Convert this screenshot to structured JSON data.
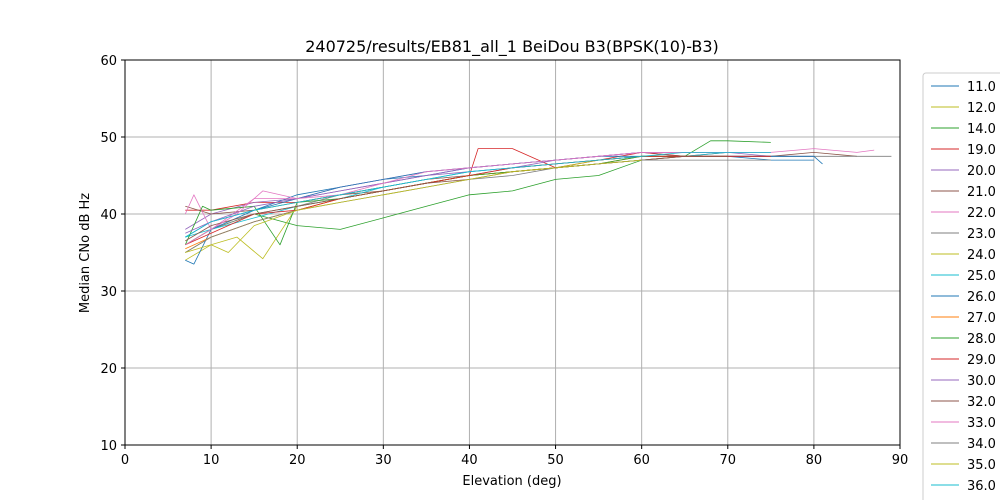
{
  "chart_data": {
    "type": "line",
    "title": "240725/results/EB81_all_1 BeiDou B3(BPSK(10)-B3)",
    "xlabel": "Elevation (deg)",
    "ylabel": "Median CNo dB Hz",
    "xlim": [
      0,
      90
    ],
    "ylim": [
      10,
      60
    ],
    "xticks": [
      0,
      10,
      20,
      30,
      40,
      50,
      60,
      70,
      80,
      90
    ],
    "yticks": [
      10,
      20,
      30,
      40,
      50,
      60
    ],
    "grid": true,
    "legend_position": "right, outside plot",
    "series": [
      {
        "name": "11.0",
        "color": "#1f77b4",
        "x": [
          7,
          10,
          15,
          20,
          25,
          30,
          35,
          40,
          45,
          50,
          55,
          60,
          65,
          70,
          75,
          80
        ],
        "values": [
          37,
          39,
          40.5,
          42.5,
          43.5,
          44.5,
          45,
          46,
          46.5,
          47,
          47.5,
          48,
          47.5,
          47.5,
          47,
          47
        ]
      },
      {
        "name": "12.0",
        "color": "#bcbd22",
        "x": [
          7,
          10,
          15,
          20,
          25,
          30,
          35,
          40,
          45,
          50,
          55,
          60
        ],
        "values": [
          35,
          37,
          39,
          40.5,
          42,
          43,
          44,
          45,
          45.5,
          46,
          46.5,
          47
        ]
      },
      {
        "name": "14.0",
        "color": "#2ca02c",
        "x": [
          7,
          10,
          15,
          20,
          25,
          30,
          35,
          40,
          45,
          50,
          55,
          60,
          65,
          68,
          70,
          75
        ],
        "values": [
          36,
          38,
          40,
          38.5,
          38,
          39.5,
          41,
          42.5,
          43,
          44.5,
          45,
          47,
          47.5,
          49.5,
          49.5,
          49.3
        ]
      },
      {
        "name": "19.0",
        "color": "#d62728",
        "x": [
          7,
          10,
          15,
          20,
          25,
          30,
          35,
          40,
          41,
          45,
          50,
          55,
          60,
          65,
          70
        ],
        "values": [
          40.5,
          40.5,
          41.5,
          41.5,
          42.5,
          43.5,
          44.5,
          45,
          48.5,
          48.5,
          46,
          47,
          48,
          47.5,
          48
        ]
      },
      {
        "name": "20.0",
        "color": "#9467bd",
        "x": [
          7,
          10,
          15,
          20,
          25,
          30,
          35,
          40,
          45,
          50,
          55,
          60,
          65,
          70,
          75,
          80
        ],
        "values": [
          38,
          40,
          41.5,
          42,
          43,
          44,
          45,
          46,
          46.5,
          47,
          47.5,
          48,
          48,
          48,
          47.5,
          47.5
        ]
      },
      {
        "name": "21.0",
        "color": "#8c564b",
        "x": [
          7,
          10,
          15,
          20,
          25,
          30,
          35,
          40,
          45,
          50,
          55,
          60,
          65,
          70,
          75,
          80,
          85
        ],
        "values": [
          41,
          40,
          40.5,
          41.5,
          42.5,
          43,
          44,
          45,
          45.5,
          46,
          46.5,
          47,
          47.5,
          47.5,
          47.5,
          48,
          47.5
        ]
      },
      {
        "name": "22.0",
        "color": "#e377c2",
        "x": [
          7,
          8,
          10,
          15,
          20,
          25,
          30,
          35,
          40,
          45,
          50,
          55,
          60,
          65,
          70,
          75,
          80,
          85,
          87
        ],
        "values": [
          40,
          42.5,
          38,
          42,
          42,
          43.5,
          44.5,
          45.5,
          46,
          46.5,
          47,
          47.5,
          48,
          48,
          48,
          48,
          48.5,
          48,
          48.3
        ]
      },
      {
        "name": "23.0",
        "color": "#7f7f7f",
        "x": [
          7,
          10,
          15,
          20,
          25,
          30,
          35,
          40,
          45,
          50,
          55,
          60,
          65,
          70,
          75,
          80,
          85,
          89
        ],
        "values": [
          36,
          38,
          40,
          41,
          42.5,
          43.5,
          44.5,
          45,
          46,
          46.5,
          47,
          47.5,
          47.5,
          47.5,
          47.5,
          47.5,
          47.5,
          47.5
        ]
      },
      {
        "name": "24.0",
        "color": "#bcbd22",
        "x": [
          7,
          10,
          13,
          16,
          20,
          25,
          30,
          35,
          40,
          45,
          50,
          55,
          60
        ],
        "values": [
          34,
          36,
          37,
          34.2,
          41,
          42,
          43,
          44,
          45,
          45.5,
          46,
          47,
          47.5
        ]
      },
      {
        "name": "25.0",
        "color": "#17becf",
        "x": [
          7,
          10,
          15,
          20,
          25,
          30,
          35,
          40,
          45,
          50,
          55,
          60,
          65,
          70
        ],
        "values": [
          37,
          38,
          39.5,
          41,
          42,
          43.5,
          44.5,
          45.5,
          46,
          46.5,
          47,
          47.5,
          47.5,
          48
        ]
      },
      {
        "name": "26.0",
        "color": "#1f77b4",
        "x": [
          7,
          8,
          10,
          15,
          20,
          25,
          30,
          35,
          40,
          45,
          50,
          55,
          60,
          65,
          70,
          75,
          80,
          81
        ],
        "values": [
          34,
          33.5,
          38,
          40.5,
          42,
          43.5,
          44.5,
          45.5,
          46,
          46.5,
          47,
          47.5,
          47.5,
          47.5,
          47.5,
          47.5,
          47.5,
          46.5
        ]
      },
      {
        "name": "27.0",
        "color": "#ff7f0e",
        "x": [
          7,
          10,
          15,
          20,
          25,
          30,
          35,
          40,
          45,
          50,
          55,
          60,
          65,
          70
        ],
        "values": [
          35.5,
          37,
          39,
          40.5,
          42,
          43,
          44,
          45,
          45.5,
          46,
          46.5,
          47.5,
          47.5,
          47.5
        ]
      },
      {
        "name": "28.0",
        "color": "#2ca02c",
        "x": [
          7,
          9,
          10,
          15,
          18,
          20,
          25,
          30,
          35,
          40,
          45,
          50,
          55,
          60,
          65
        ],
        "values": [
          36,
          41,
          40.5,
          41,
          36,
          41.5,
          42,
          43,
          44,
          45,
          45.5,
          46,
          46.5,
          47.5,
          47.5
        ]
      },
      {
        "name": "29.0",
        "color": "#d62728",
        "x": [
          7,
          10,
          15,
          20,
          25,
          30,
          35,
          40,
          45,
          50,
          55,
          60,
          65,
          70,
          75
        ],
        "values": [
          36,
          37.5,
          40,
          40.5,
          42,
          43,
          44,
          45,
          46,
          46.5,
          47,
          47.5,
          47.5,
          47.5,
          47.5
        ]
      },
      {
        "name": "30.0",
        "color": "#9467bd",
        "x": [
          7,
          10,
          15,
          20,
          25,
          30,
          35,
          40,
          45,
          50,
          55,
          60,
          65,
          70,
          75
        ],
        "values": [
          37.5,
          39,
          41,
          42,
          43,
          44,
          45,
          45.5,
          46,
          47,
          47.5,
          48,
          48,
          48,
          48
        ]
      },
      {
        "name": "32.0",
        "color": "#8c564b",
        "x": [
          7,
          10,
          15,
          20,
          25,
          30,
          35,
          40,
          45,
          50,
          55,
          60,
          65,
          70
        ],
        "values": [
          36.5,
          38.5,
          40,
          41,
          42,
          43,
          44,
          44.5,
          45.5,
          46,
          46.5,
          47,
          47.5,
          47.5
        ]
      },
      {
        "name": "33.0",
        "color": "#e377c2",
        "x": [
          7,
          10,
          13,
          16,
          20,
          25,
          30,
          35,
          40,
          45,
          50,
          55,
          60,
          65,
          70
        ],
        "values": [
          36,
          38,
          40,
          43,
          42,
          42.5,
          44,
          45.5,
          46,
          46.5,
          47,
          47.5,
          48,
          48,
          48
        ]
      },
      {
        "name": "34.0",
        "color": "#7f7f7f",
        "x": [
          7,
          10,
          15,
          20,
          25,
          30,
          35,
          40,
          45,
          50,
          55,
          60,
          65,
          70,
          75
        ],
        "values": [
          35,
          37,
          39,
          40.5,
          41.5,
          42.5,
          43.5,
          44.5,
          45,
          46,
          46.5,
          47,
          47,
          47,
          47
        ]
      },
      {
        "name": "35.0",
        "color": "#bcbd22",
        "x": [
          7,
          10,
          12,
          15,
          20,
          25,
          30,
          35,
          40,
          45,
          50,
          55,
          60
        ],
        "values": [
          35,
          36,
          35,
          38.5,
          40.5,
          41.5,
          42.5,
          43.5,
          44.5,
          45.5,
          46,
          46.5,
          47
        ]
      },
      {
        "name": "36.0",
        "color": "#17becf",
        "x": [
          7,
          10,
          15,
          20,
          25,
          30,
          35,
          40,
          45,
          50,
          55,
          60,
          65,
          70,
          75
        ],
        "values": [
          37,
          39,
          40.5,
          41.5,
          42.5,
          43.5,
          44.5,
          45.5,
          46,
          46.5,
          47,
          47.5,
          48,
          48,
          48
        ]
      }
    ]
  }
}
